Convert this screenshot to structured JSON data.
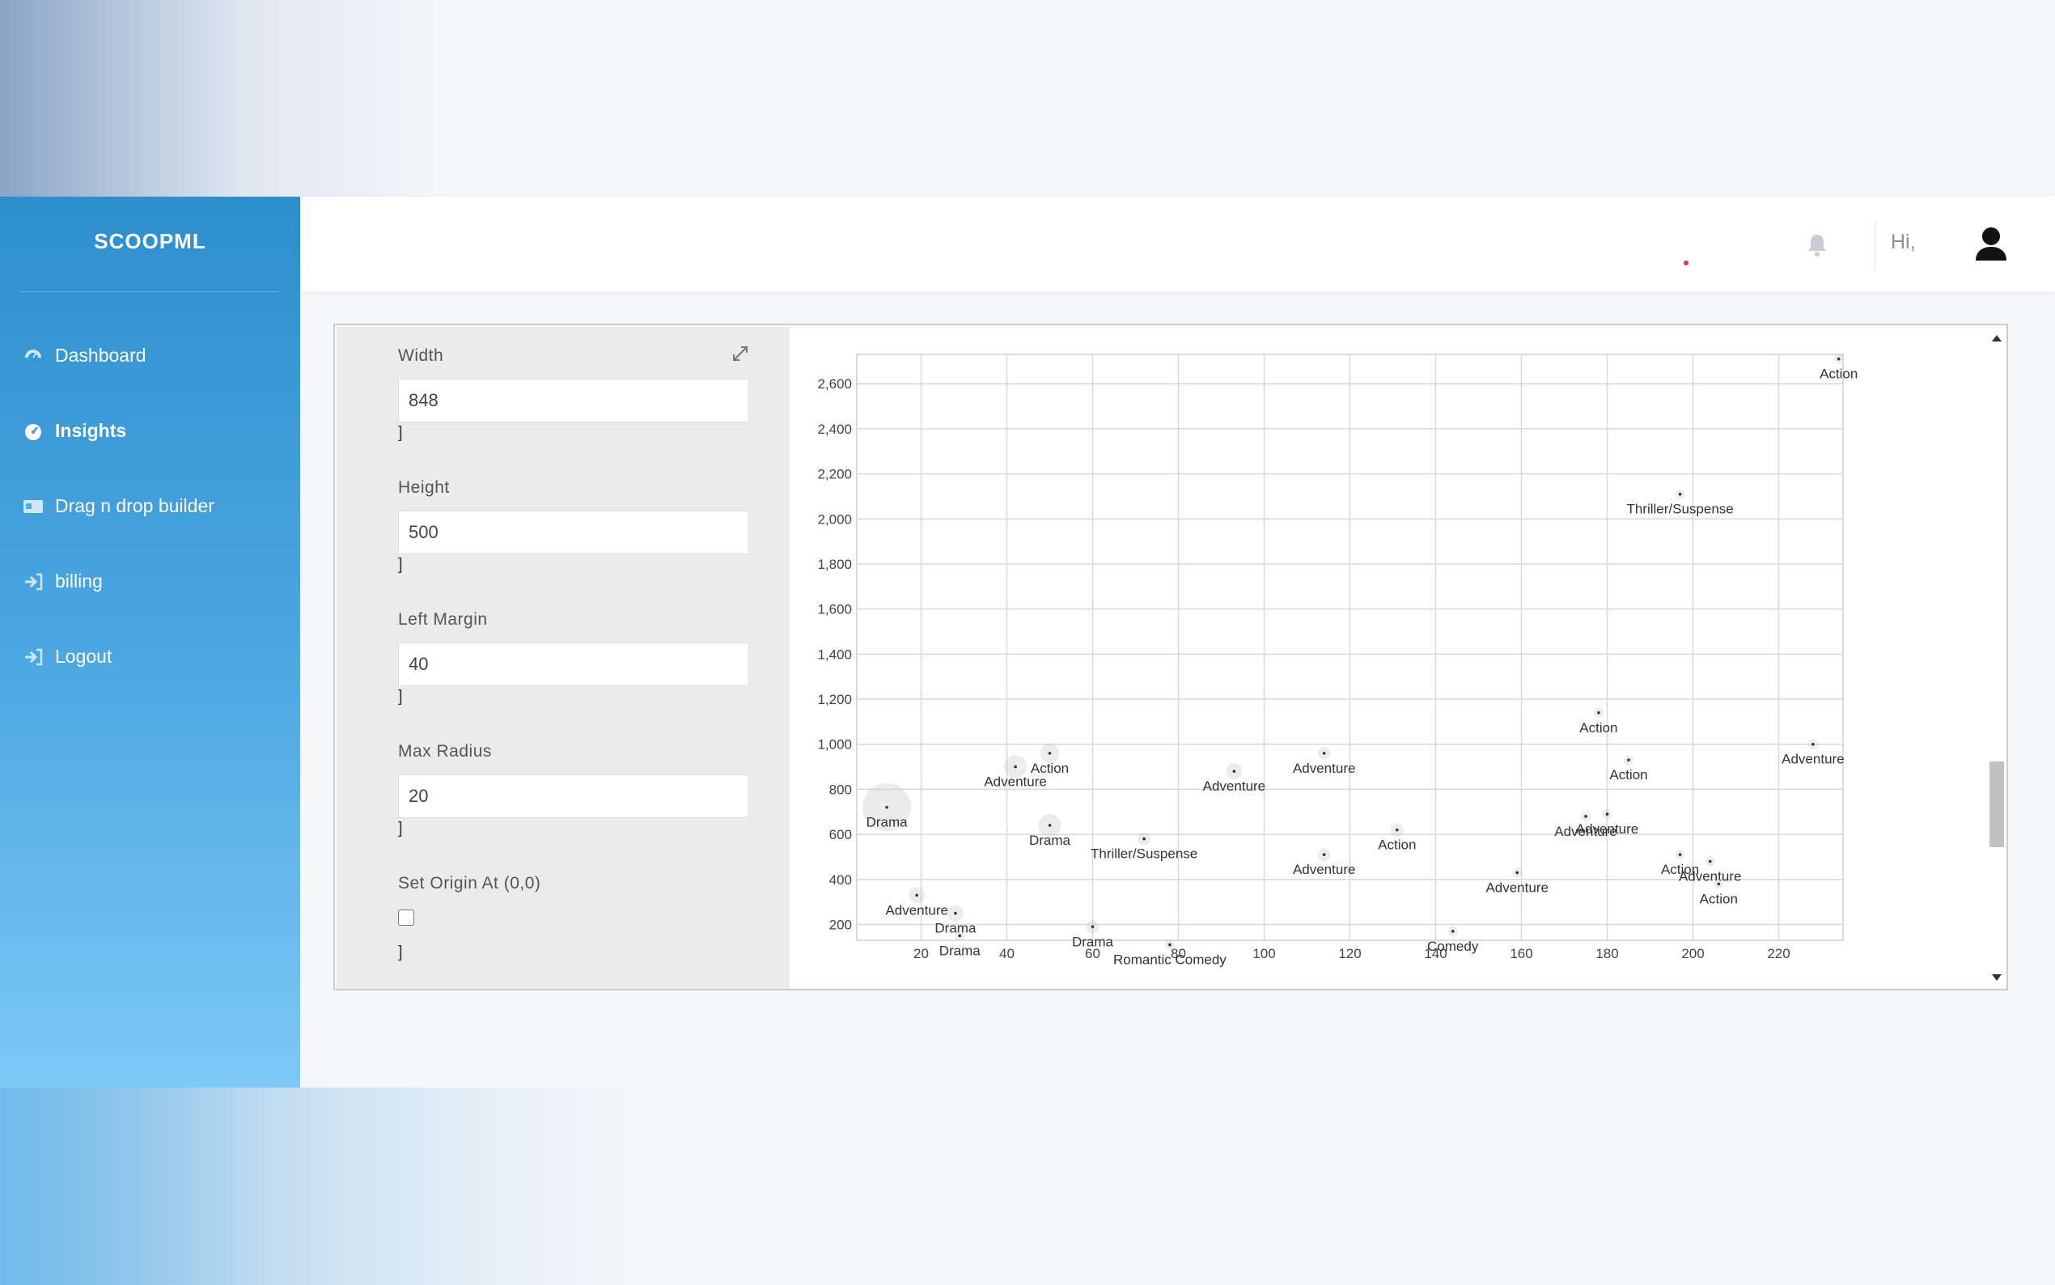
{
  "brand": "SCOOPML",
  "nav": {
    "items": [
      {
        "label": "Dashboard",
        "icon": "gauge-icon"
      },
      {
        "label": "Insights",
        "icon": "gauge-icon"
      },
      {
        "label": "Drag n drop builder",
        "icon": "id-card-icon"
      },
      {
        "label": "billing",
        "icon": "sign-in-icon"
      },
      {
        "label": "Logout",
        "icon": "sign-in-icon"
      }
    ],
    "active": "Insights"
  },
  "header": {
    "greeting": "Hi,",
    "bell_icon": "bell-icon",
    "avatar_icon": "user-icon"
  },
  "form": {
    "width": {
      "label": "Width",
      "value": "848"
    },
    "height": {
      "label": "Height",
      "value": "500"
    },
    "left_margin": {
      "label": "Left Margin",
      "value": "40"
    },
    "max_radius": {
      "label": "Max Radius",
      "value": "20"
    },
    "origin": {
      "label": "Set Origin At (0,0)",
      "checked": false
    },
    "bracket": "]"
  },
  "chart_data": {
    "type": "scatter",
    "title": "",
    "xlabel": "",
    "ylabel": "",
    "xlim": [
      5,
      235
    ],
    "ylim": [
      130,
      2730
    ],
    "xticks": [
      20,
      40,
      60,
      80,
      100,
      120,
      140,
      160,
      180,
      200,
      220
    ],
    "yticks": [
      200,
      400,
      600,
      800,
      1000,
      1200,
      1400,
      1600,
      1800,
      2000,
      2200,
      2400,
      2600
    ],
    "grid": true,
    "points": [
      {
        "x": 234,
        "y": 2710,
        "label": "Action",
        "r": 6
      },
      {
        "x": 197,
        "y": 2110,
        "label": "Thriller/Suspense",
        "r": 6
      },
      {
        "x": 178,
        "y": 1140,
        "label": "Action",
        "r": 6
      },
      {
        "x": 185,
        "y": 930,
        "label": "Action",
        "r": 6
      },
      {
        "x": 228,
        "y": 1000,
        "label": "Adventure",
        "r": 6
      },
      {
        "x": 42,
        "y": 900,
        "label": "Adventure",
        "r": 14
      },
      {
        "x": 50,
        "y": 960,
        "label": "Action",
        "r": 12
      },
      {
        "x": 12,
        "y": 720,
        "label": "Drama",
        "r": 30
      },
      {
        "x": 50,
        "y": 640,
        "label": "Drama",
        "r": 14
      },
      {
        "x": 72,
        "y": 580,
        "label": "Thriller/Suspense",
        "r": 8
      },
      {
        "x": 93,
        "y": 880,
        "label": "Adventure",
        "r": 10
      },
      {
        "x": 114,
        "y": 960,
        "label": "Adventure",
        "r": 8
      },
      {
        "x": 114,
        "y": 510,
        "label": "Adventure",
        "r": 8
      },
      {
        "x": 131,
        "y": 620,
        "label": "Action",
        "r": 8
      },
      {
        "x": 159,
        "y": 430,
        "label": "Adventure",
        "r": 6
      },
      {
        "x": 175,
        "y": 680,
        "label": "Adventure",
        "r": 6
      },
      {
        "x": 180,
        "y": 690,
        "label": "Adventure",
        "r": 6
      },
      {
        "x": 197,
        "y": 510,
        "label": "Action",
        "r": 6
      },
      {
        "x": 204,
        "y": 480,
        "label": "Adventure",
        "r": 6
      },
      {
        "x": 206,
        "y": 380,
        "label": "Action",
        "r": 6
      },
      {
        "x": 19,
        "y": 330,
        "label": "Adventure",
        "r": 10
      },
      {
        "x": 28,
        "y": 250,
        "label": "Drama",
        "r": 10
      },
      {
        "x": 29,
        "y": 150,
        "label": "Drama",
        "r": 6
      },
      {
        "x": 60,
        "y": 190,
        "label": "Drama",
        "r": 8
      },
      {
        "x": 78,
        "y": 110,
        "label": "Romantic Comedy",
        "r": 6
      },
      {
        "x": 144,
        "y": 170,
        "label": "Comedy",
        "r": 6
      }
    ]
  }
}
